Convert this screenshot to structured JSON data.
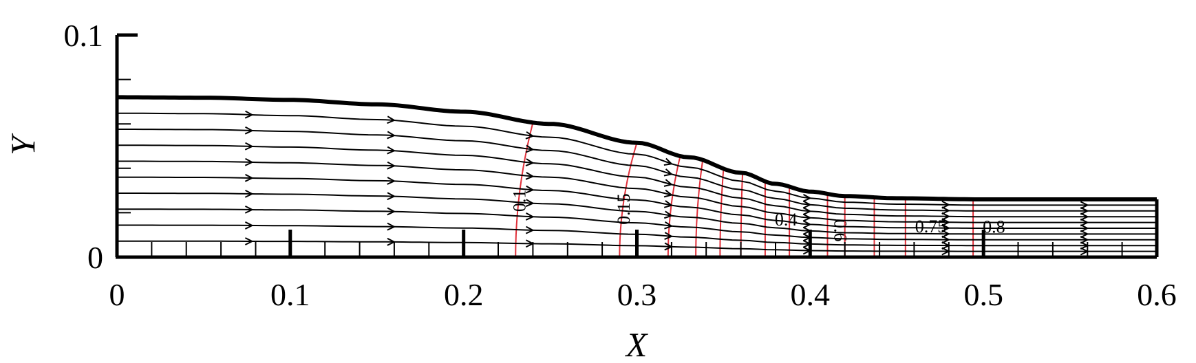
{
  "chart_data": {
    "type": "line",
    "title": "",
    "xlabel": "X",
    "ylabel": "Y",
    "xlim": [
      0,
      0.6
    ],
    "ylim": [
      0,
      0.1
    ],
    "x_ticks": [
      "0",
      "0.1",
      "0.2",
      "0.3",
      "0.4",
      "0.5",
      "0.6"
    ],
    "y_ticks": [
      "0",
      "0.1"
    ],
    "grid": false,
    "colors": {
      "wall": "#000000",
      "streamline": "#000000",
      "contour": "#e0303a"
    },
    "wall_profile": {
      "x": [
        0,
        0.05,
        0.1,
        0.15,
        0.2,
        0.25,
        0.3,
        0.33,
        0.36,
        0.38,
        0.4,
        0.42,
        0.45,
        0.5,
        0.55,
        0.6
      ],
      "y": [
        0.072,
        0.0718,
        0.0708,
        0.0688,
        0.0655,
        0.06,
        0.0515,
        0.045,
        0.038,
        0.033,
        0.0295,
        0.0275,
        0.0265,
        0.026,
        0.026,
        0.026
      ]
    },
    "streamline_fractions": [
      0.1,
      0.2,
      0.3,
      0.4,
      0.5,
      0.6,
      0.7,
      0.8,
      0.9
    ],
    "arrow_x": [
      0.078,
      0.16,
      0.24,
      0.32,
      0.4,
      0.48,
      0.56
    ],
    "contours": [
      {
        "label": "0.1",
        "x_base": 0.23,
        "x_top": 0.24
      },
      {
        "label": "0.15",
        "x_base": 0.29,
        "x_top": 0.3
      },
      {
        "label": "",
        "x_base": 0.318,
        "x_top": 0.325
      },
      {
        "label": "",
        "x_base": 0.334,
        "x_top": 0.338
      },
      {
        "label": "",
        "x_base": 0.348,
        "x_top": 0.35
      },
      {
        "label": "",
        "x_base": 0.36,
        "x_top": 0.361
      },
      {
        "label": "0.4",
        "x_base": 0.374,
        "x_top": 0.374
      },
      {
        "label": "",
        "x_base": 0.388,
        "x_top": 0.388
      },
      {
        "label": "0.6",
        "x_base": 0.41,
        "x_top": 0.41
      },
      {
        "label": "",
        "x_base": 0.42,
        "x_top": 0.42
      },
      {
        "label": "",
        "x_base": 0.437,
        "x_top": 0.437
      },
      {
        "label": "0.75",
        "x_base": 0.455,
        "x_top": 0.455
      },
      {
        "label": "0.8",
        "x_base": 0.494,
        "x_top": 0.494
      }
    ]
  }
}
